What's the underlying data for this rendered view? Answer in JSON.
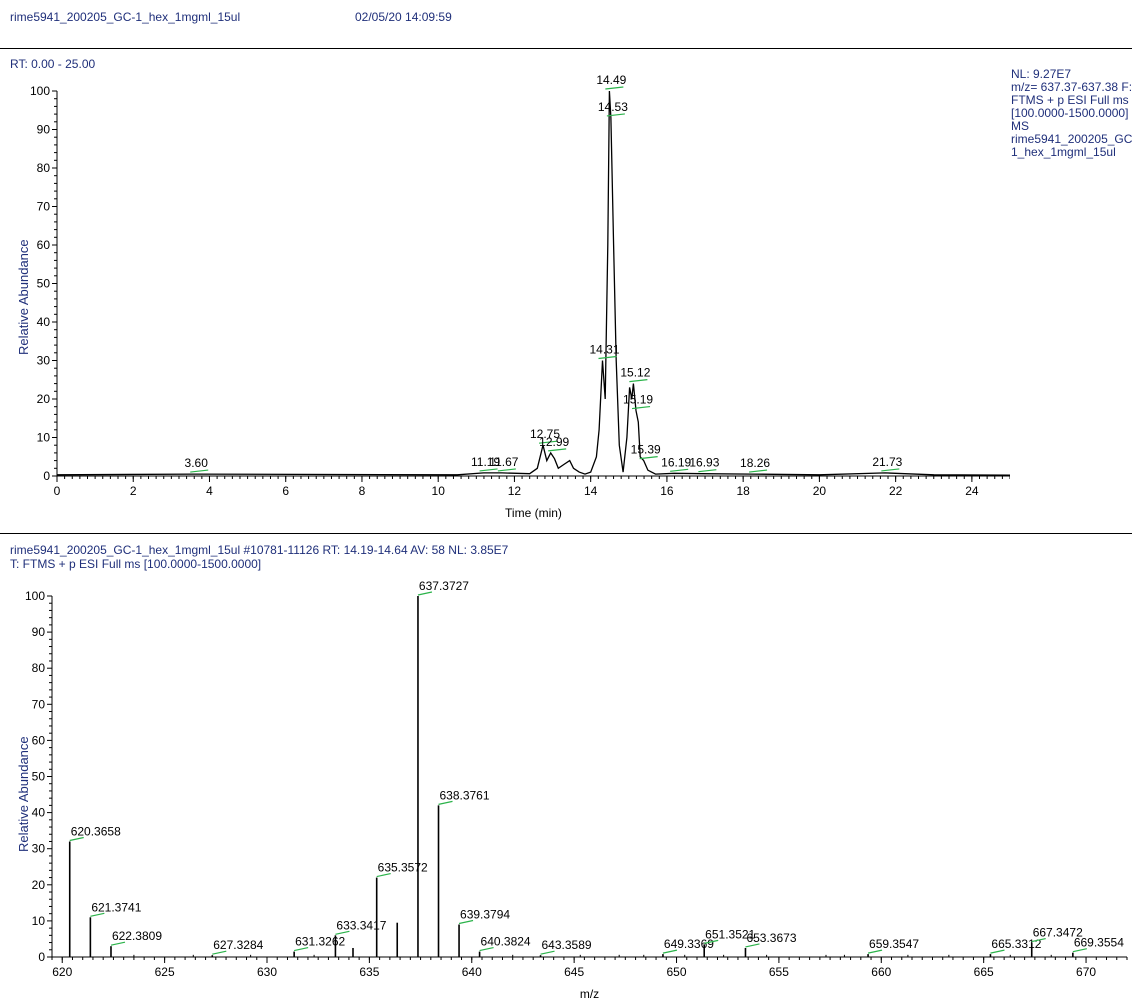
{
  "header": {
    "filename": "rime5941_200205_GC-1_hex_1mgml_15ul",
    "datetime": "02/05/20 14:09:59"
  },
  "chromatogram": {
    "rt_label": "RT: 0.00 - 25.00",
    "nl_lines": [
      "NL: 9.27E7",
      "m/z= 637.37-637.38 F:",
      "FTMS + p ESI Full ms",
      "[100.0000-1500.0000]",
      "MS",
      "rime5941_200205_GC-",
      "1_hex_1mgml_15ul"
    ]
  },
  "spectrum": {
    "info_line1": "rime5941_200205_GC-1_hex_1mgml_15ul #10781-11126   RT: 14.19-14.64   AV: 58   NL: 3.85E7",
    "info_line2": "T: FTMS + p ESI Full ms [100.0000-1500.0000]"
  },
  "chart_data": [
    {
      "type": "line",
      "title": "",
      "xlabel": "Time (min)",
      "ylabel": "Relative Abundance",
      "xlim": [
        0,
        25
      ],
      "ylim": [
        0,
        100
      ],
      "xticks": [
        0,
        2,
        4,
        6,
        8,
        10,
        12,
        14,
        16,
        18,
        20,
        22,
        24
      ],
      "yticks": [
        0,
        10,
        20,
        30,
        40,
        50,
        60,
        70,
        80,
        90,
        100
      ],
      "x": [
        0,
        3.6,
        10.5,
        11.19,
        11.67,
        12.4,
        12.6,
        12.75,
        12.85,
        12.95,
        13.05,
        13.15,
        13.3,
        13.45,
        13.55,
        13.7,
        13.85,
        14.0,
        14.15,
        14.22,
        14.31,
        14.38,
        14.45,
        14.49,
        14.53,
        14.6,
        14.67,
        14.75,
        14.85,
        14.95,
        15.02,
        15.08,
        15.12,
        15.19,
        15.25,
        15.3,
        15.39,
        15.5,
        15.7,
        16.19,
        16.93,
        18.26,
        20,
        21.73,
        23,
        25
      ],
      "y": [
        0.3,
        0.5,
        0.3,
        0.8,
        0.8,
        0.6,
        2.0,
        8.0,
        4.0,
        6.0,
        4.5,
        2.0,
        3.0,
        4.0,
        2.0,
        1.0,
        0.5,
        1.0,
        5.0,
        12.0,
        30.0,
        20.0,
        60.0,
        100.0,
        93.0,
        60.0,
        30.0,
        8.0,
        1.0,
        10.0,
        23.0,
        20.0,
        24.0,
        17.0,
        14.0,
        5.0,
        4.0,
        1.5,
        0.5,
        0.7,
        0.6,
        0.5,
        0.3,
        0.8,
        0.3,
        0.2
      ],
      "peak_labels": [
        {
          "x": 3.6,
          "y": 0.5,
          "label": "3.60"
        },
        {
          "x": 11.19,
          "y": 0.8,
          "label": "11.19"
        },
        {
          "x": 11.67,
          "y": 0.8,
          "label": "11.67"
        },
        {
          "x": 12.75,
          "y": 8.0,
          "label": "12.75"
        },
        {
          "x": 12.99,
          "y": 6.0,
          "label": "12.99"
        },
        {
          "x": 14.31,
          "y": 30.0,
          "label": "14.31"
        },
        {
          "x": 14.49,
          "y": 100.0,
          "label": "14.49"
        },
        {
          "x": 14.53,
          "y": 93.0,
          "label": "14.53"
        },
        {
          "x": 15.12,
          "y": 24.0,
          "label": "15.12"
        },
        {
          "x": 15.19,
          "y": 17.0,
          "label": "15.19"
        },
        {
          "x": 15.39,
          "y": 4.0,
          "label": "15.39"
        },
        {
          "x": 16.19,
          "y": 0.7,
          "label": "16.19"
        },
        {
          "x": 16.93,
          "y": 0.6,
          "label": "16.93"
        },
        {
          "x": 18.26,
          "y": 0.5,
          "label": "18.26"
        },
        {
          "x": 21.73,
          "y": 0.8,
          "label": "21.73"
        }
      ]
    },
    {
      "type": "bar",
      "title": "",
      "xlabel": "m/z",
      "ylabel": "Relative Abundance",
      "xlim": [
        619.5,
        672
      ],
      "ylim": [
        0,
        100
      ],
      "xticks": [
        620,
        625,
        630,
        635,
        640,
        645,
        650,
        655,
        660,
        665,
        670
      ],
      "yticks": [
        0,
        10,
        20,
        30,
        40,
        50,
        60,
        70,
        80,
        90,
        100
      ],
      "x": [
        620.3658,
        621.3741,
        622.3809,
        627.3284,
        631.3262,
        633.3417,
        634.2,
        635.3572,
        636.36,
        637.3727,
        638.3761,
        639.3794,
        640.3824,
        643.3589,
        649.3369,
        651.3521,
        653.3673,
        659.3547,
        665.3312,
        667.3472,
        669.3554
      ],
      "y": [
        32.0,
        11.0,
        3.0,
        0.5,
        1.5,
        6.0,
        2.5,
        22.0,
        9.5,
        100.0,
        42.0,
        9.0,
        1.5,
        0.5,
        0.8,
        3.5,
        2.5,
        0.8,
        0.8,
        4.0,
        1.2
      ],
      "peak_labels": [
        {
          "x": 620.3658,
          "y": 32.0,
          "label": "620.3658"
        },
        {
          "x": 621.3741,
          "y": 11.0,
          "label": "621.3741"
        },
        {
          "x": 622.3809,
          "y": 3.0,
          "label": "622.3809"
        },
        {
          "x": 627.3284,
          "y": 0.5,
          "label": "627.3284"
        },
        {
          "x": 631.3262,
          "y": 1.5,
          "label": "631.3262"
        },
        {
          "x": 633.3417,
          "y": 6.0,
          "label": "633.3417"
        },
        {
          "x": 635.3572,
          "y": 22.0,
          "label": "635.3572"
        },
        {
          "x": 637.3727,
          "y": 100.0,
          "label": "637.3727"
        },
        {
          "x": 638.3761,
          "y": 42.0,
          "label": "638.3761"
        },
        {
          "x": 639.3794,
          "y": 9.0,
          "label": "639.3794"
        },
        {
          "x": 640.3824,
          "y": 1.5,
          "label": "640.3824"
        },
        {
          "x": 643.3589,
          "y": 0.5,
          "label": "643.3589"
        },
        {
          "x": 649.3369,
          "y": 0.8,
          "label": "649.3369"
        },
        {
          "x": 651.3521,
          "y": 3.5,
          "label": "651.3521"
        },
        {
          "x": 653.3673,
          "y": 2.5,
          "label": "653.3673"
        },
        {
          "x": 659.3547,
          "y": 0.8,
          "label": "659.3547"
        },
        {
          "x": 665.3312,
          "y": 0.8,
          "label": "665.3312"
        },
        {
          "x": 667.3472,
          "y": 4.0,
          "label": "667.3472"
        },
        {
          "x": 669.3554,
          "y": 1.2,
          "label": "669.3554"
        }
      ],
      "minor_lines": [
        623.5,
        626.4,
        629.2,
        632.3,
        642.0,
        645.3,
        647.2,
        648.4,
        650.4,
        652.3,
        654.4,
        657.3,
        658.2,
        661.3,
        663.3,
        666.3,
        668.3
      ]
    }
  ]
}
